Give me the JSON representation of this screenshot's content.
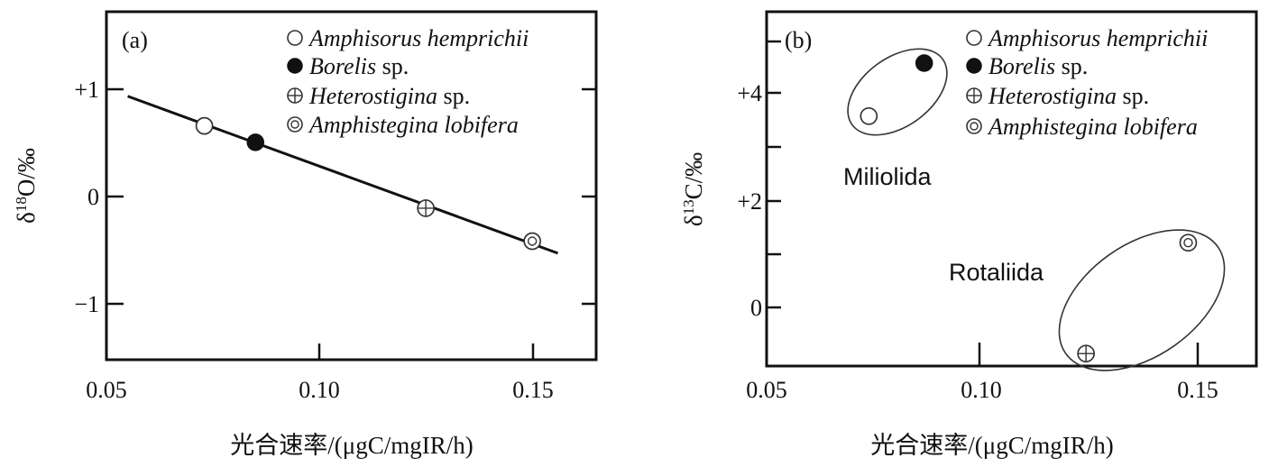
{
  "chart_data": [
    {
      "type": "scatter",
      "panel_label": "(a)",
      "xlabel": "光合速率/(μgC/mgIR/h)",
      "ylabel_parts": {
        "delta": "δ",
        "sup": "18",
        "rest": "O/‰"
      },
      "xlim": [
        0.05,
        0.165
      ],
      "ylim": [
        -1.5,
        1.67
      ],
      "x_ticks": [
        0.05,
        0.1,
        0.15
      ],
      "x_tick_labels": [
        "0.05",
        "0.10",
        "0.15"
      ],
      "y_ticks": [
        1,
        0,
        -1
      ],
      "y_tick_labels": [
        "+1",
        "0",
        "−1"
      ],
      "legend_position": "top-right",
      "series": [
        {
          "name": "Amphisorus hemprichii",
          "name_italic": "Amphisorus hemprichii",
          "name_suffix": "",
          "marker": "open-circle",
          "points": [
            [
              0.073,
              0.63
            ]
          ]
        },
        {
          "name": "Borelis sp.",
          "name_italic": "Borelis",
          "name_suffix": " sp.",
          "marker": "filled-circle",
          "points": [
            [
              0.085,
              0.48
            ]
          ]
        },
        {
          "name": "Heterostigina sp.",
          "name_italic": "Heterostigina",
          "name_suffix": " sp.",
          "marker": "crossed-circle",
          "points": [
            [
              0.125,
              -0.12
            ]
          ]
        },
        {
          "name": "Amphistegina lobifera",
          "name_italic": "Amphistegina lobifera",
          "name_suffix": "",
          "marker": "double-circle",
          "points": [
            [
              0.15,
              -0.42
            ]
          ]
        }
      ],
      "trend_line": {
        "x": [
          0.055,
          0.156
        ],
        "y": [
          0.9,
          -0.53
        ]
      },
      "groups": []
    },
    {
      "type": "scatter",
      "panel_label": "(b)",
      "xlabel": "光合速率/(μgC/mgIR/h)",
      "ylabel_parts": {
        "delta": "δ",
        "sup": "13",
        "rest": "C/‰"
      },
      "xlim": [
        0.05,
        0.165
      ],
      "ylim": [
        -1.1,
        5.45
      ],
      "x_ticks": [
        0.05,
        0.1,
        0.15
      ],
      "x_tick_labels": [
        "0.05",
        "0.10",
        "0.15"
      ],
      "y_ticks": [
        4,
        2,
        0
      ],
      "y_tick_labels": [
        "+4",
        "+2",
        "0"
      ],
      "legend_position": "top-right",
      "series": [
        {
          "name": "Amphisorus hemprichii",
          "name_italic": "Amphisorus hemprichii",
          "name_suffix": "",
          "marker": "open-circle",
          "points": [
            [
              0.074,
              3.52
            ]
          ]
        },
        {
          "name": "Borelis sp.",
          "name_italic": "Borelis",
          "name_suffix": " sp.",
          "marker": "filled-circle",
          "points": [
            [
              0.087,
              4.5
            ]
          ]
        },
        {
          "name": "Heterostigina sp.",
          "name_italic": "Heterostigina",
          "name_suffix": " sp.",
          "marker": "crossed-circle",
          "points": [
            [
              0.125,
              -0.87
            ]
          ]
        },
        {
          "name": "Amphistegina lobifera",
          "name_italic": "Amphistegina lobifera",
          "name_suffix": "",
          "marker": "double-circle",
          "points": [
            [
              0.149,
              1.18
            ]
          ]
        }
      ],
      "trend_line": null,
      "groups": [
        {
          "label": "Miliolida",
          "members": [
            "Amphisorus hemprichii",
            "Borelis sp."
          ]
        },
        {
          "label": "Rotaliida",
          "members": [
            "Heterostigina sp.",
            "Amphistegina lobifera"
          ]
        }
      ]
    }
  ]
}
